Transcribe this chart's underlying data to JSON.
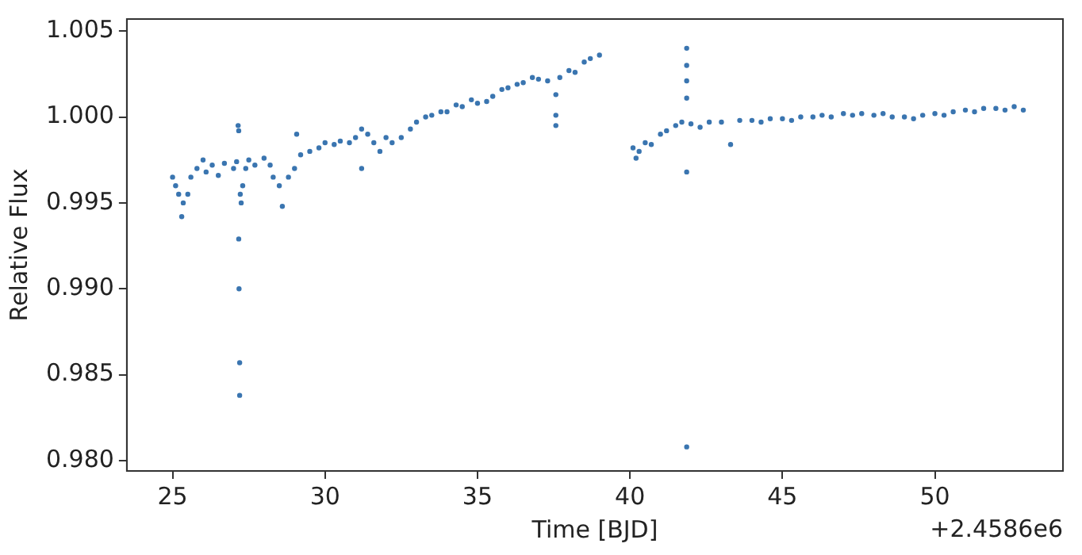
{
  "chart_data": {
    "type": "scatter",
    "xlabel": "Time [BJD]",
    "ylabel": "Relative Flux",
    "annotations": [
      "+2.4586e6"
    ],
    "xlim": [
      23.5,
      54.2
    ],
    "xticks": [
      25,
      30,
      35,
      40,
      45,
      50
    ],
    "ylim": [
      0.9794,
      1.0057
    ],
    "yticks": [
      {
        "value": 0.98,
        "label": "0.980"
      },
      {
        "value": 0.985,
        "label": "0.985"
      },
      {
        "value": 0.99,
        "label": "0.990"
      },
      {
        "value": 0.995,
        "label": "0.995"
      },
      {
        "value": 1.0,
        "label": "1.000"
      },
      {
        "value": 1.005,
        "label": "1.005"
      }
    ],
    "grid": false,
    "legend": false,
    "marker": "circle",
    "series": [
      {
        "color": "#3a75b0",
        "x": [
          25.0,
          25.1,
          25.2,
          25.3,
          25.35,
          25.5,
          25.6,
          25.8,
          26.0,
          26.1,
          26.3,
          26.5,
          26.7,
          27.0,
          27.1,
          27.15,
          27.17,
          27.17,
          27.18,
          27.2,
          27.2,
          27.22,
          27.25,
          27.3,
          27.4,
          27.5,
          27.7,
          28.0,
          28.2,
          28.3,
          28.5,
          28.6,
          28.8,
          29.0,
          29.07,
          29.2,
          29.5,
          29.8,
          30.0,
          30.3,
          30.5,
          30.8,
          31.0,
          31.2,
          31.2,
          31.4,
          31.6,
          31.8,
          32.0,
          32.2,
          32.5,
          32.8,
          33.0,
          33.3,
          33.5,
          33.8,
          34.0,
          34.3,
          34.5,
          34.8,
          35.0,
          35.3,
          35.5,
          35.8,
          36.0,
          36.3,
          36.5,
          36.8,
          37.0,
          37.3,
          37.57,
          37.57,
          37.57,
          37.7,
          38.0,
          38.2,
          38.5,
          38.7,
          39.0,
          40.1,
          40.2,
          40.3,
          40.5,
          40.7,
          41.0,
          41.2,
          41.5,
          41.7,
          41.86,
          41.86,
          41.86,
          41.86,
          41.86,
          41.86,
          42.0,
          42.3,
          42.6,
          43.0,
          43.3,
          43.6,
          44.0,
          44.3,
          44.6,
          45.0,
          45.3,
          45.6,
          46.0,
          46.3,
          46.6,
          47.0,
          47.3,
          47.6,
          48.0,
          48.3,
          48.6,
          49.0,
          49.3,
          49.6,
          50.0,
          50.3,
          50.6,
          51.0,
          51.3,
          51.6,
          52.0,
          52.3,
          52.6,
          52.9
        ],
        "values": [
          0.9965,
          0.996,
          0.9955,
          0.9942,
          0.995,
          0.9955,
          0.9965,
          0.997,
          0.9975,
          0.9968,
          0.9972,
          0.9966,
          0.9973,
          0.997,
          0.9974,
          0.9995,
          0.9992,
          0.9929,
          0.99,
          0.9857,
          0.9838,
          0.9955,
          0.995,
          0.996,
          0.997,
          0.9975,
          0.9972,
          0.9976,
          0.9972,
          0.9965,
          0.996,
          0.9948,
          0.9965,
          0.997,
          0.999,
          0.9978,
          0.998,
          0.9982,
          0.9985,
          0.9984,
          0.9986,
          0.9985,
          0.9988,
          0.9993,
          0.997,
          0.999,
          0.9985,
          0.998,
          0.9988,
          0.9985,
          0.9988,
          0.9993,
          0.9997,
          1.0,
          1.0001,
          1.0003,
          1.0003,
          1.0007,
          1.0006,
          1.001,
          1.0008,
          1.0009,
          1.0012,
          1.0016,
          1.0017,
          1.0019,
          1.002,
          1.0023,
          1.0022,
          1.0021,
          1.0013,
          1.0001,
          0.9995,
          1.0023,
          1.0027,
          1.0026,
          1.0032,
          1.0034,
          1.0036,
          0.9982,
          0.9976,
          0.998,
          0.9985,
          0.9984,
          0.999,
          0.9992,
          0.9995,
          0.9997,
          1.004,
          1.003,
          1.0021,
          1.0011,
          0.9968,
          0.9808,
          0.9996,
          0.9994,
          0.9997,
          0.9997,
          0.9984,
          0.9998,
          0.9998,
          0.9997,
          0.9999,
          0.9999,
          0.9998,
          1.0,
          1.0,
          1.0001,
          1.0,
          1.0002,
          1.0001,
          1.0002,
          1.0001,
          1.0002,
          1.0,
          1.0,
          0.9999,
          1.0001,
          1.0002,
          1.0001,
          1.0003,
          1.0004,
          1.0003,
          1.0005,
          1.0005,
          1.0004,
          1.0006,
          1.0004
        ]
      }
    ]
  }
}
